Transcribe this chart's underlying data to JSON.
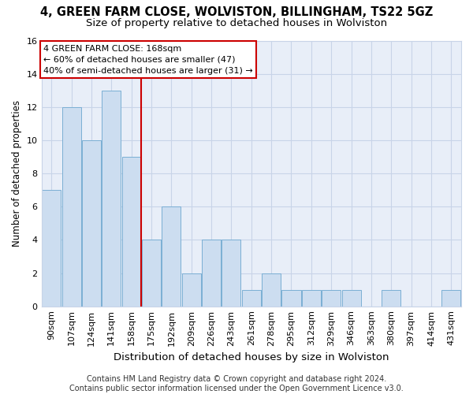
{
  "title": "4, GREEN FARM CLOSE, WOLVISTON, BILLINGHAM, TS22 5GZ",
  "subtitle": "Size of property relative to detached houses in Wolviston",
  "xlabel": "Distribution of detached houses by size in Wolviston",
  "ylabel": "Number of detached properties",
  "categories": [
    "90sqm",
    "107sqm",
    "124sqm",
    "141sqm",
    "158sqm",
    "175sqm",
    "192sqm",
    "209sqm",
    "226sqm",
    "243sqm",
    "261sqm",
    "278sqm",
    "295sqm",
    "312sqm",
    "329sqm",
    "346sqm",
    "363sqm",
    "380sqm",
    "397sqm",
    "414sqm",
    "431sqm"
  ],
  "values": [
    7,
    12,
    10,
    13,
    9,
    4,
    6,
    2,
    4,
    4,
    1,
    2,
    1,
    1,
    1,
    1,
    0,
    1,
    0,
    0,
    1
  ],
  "bar_color": "#ccddf0",
  "bar_edge_color": "#7bafd4",
  "reference_line_x": 4.5,
  "annotation_line1": "4 GREEN FARM CLOSE: 168sqm",
  "annotation_line2": "← 60% of detached houses are smaller (47)",
  "annotation_line3": "40% of semi-detached houses are larger (31) →",
  "annotation_box_color": "#ffffff",
  "annotation_box_edge_color": "#cc0000",
  "ref_line_color": "#cc0000",
  "ylim": [
    0,
    16
  ],
  "yticks": [
    0,
    2,
    4,
    6,
    8,
    10,
    12,
    14,
    16
  ],
  "grid_color": "#c8d4e8",
  "bg_color": "#e8eef8",
  "footer": "Contains HM Land Registry data © Crown copyright and database right 2024.\nContains public sector information licensed under the Open Government Licence v3.0.",
  "title_fontsize": 10.5,
  "subtitle_fontsize": 9.5,
  "xlabel_fontsize": 9.5,
  "ylabel_fontsize": 8.5,
  "tick_fontsize": 8,
  "footer_fontsize": 7
}
